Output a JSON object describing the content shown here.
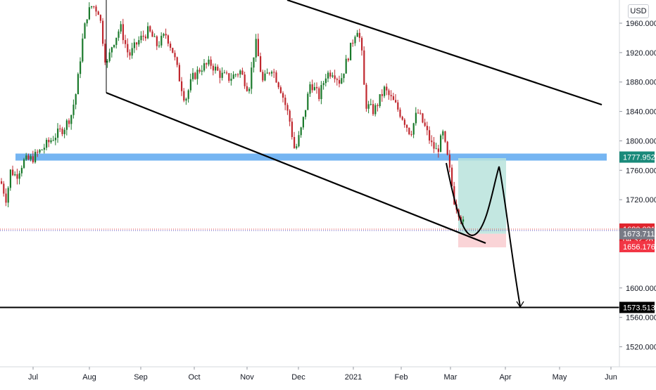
{
  "chart_data": {
    "type": "candlestick",
    "symbol_currency": "USD",
    "x_ticks": [
      "Jul",
      "Aug",
      "Sep",
      "Oct",
      "Nov",
      "Dec",
      "2021",
      "Feb",
      "Mar",
      "Apr",
      "May",
      "Jun"
    ],
    "y_ticks": [
      "1960.000",
      "1920.000",
      "1880.000",
      "1840.000",
      "1800.000",
      "1760.000",
      "1720.000",
      "1600.000",
      "1560.000",
      "1520.000"
    ],
    "ylim": [
      1500,
      1990
    ],
    "price_labels": {
      "resistance": "1777.952",
      "last_price": "1680.031",
      "countdown": "04:32:26",
      "entry": "1673.711",
      "stop": "1656.176",
      "target": "1573.513"
    },
    "colors": {
      "up": "#26a69a",
      "down": "#ef5350",
      "up_candle": "#1b7a2c",
      "down_candle": "#c0282f",
      "zone": "#5da8f0",
      "profit": "#b9e3dc",
      "loss": "#f9cdd0"
    }
  }
}
